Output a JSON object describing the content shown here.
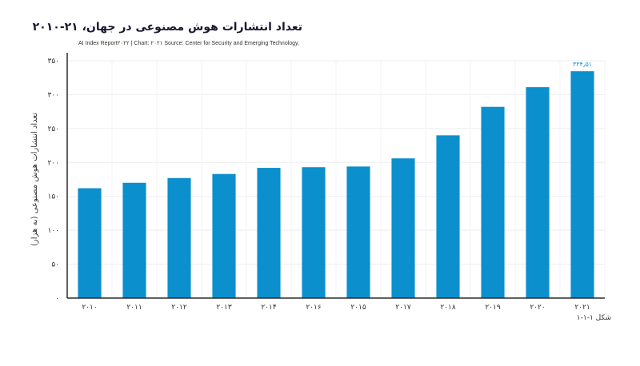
{
  "chart_data": {
    "type": "bar",
    "title": "تعداد انتشارات هوش مصنوعی در جهان، ۲۱-۲۰۱۰",
    "subtitle": "AI Index Report۲۰۲۲ | Chart: ۲۰۲۱ Source: Center for Security and Emerging Technology,",
    "caption": "شکل ۱-۱-۱",
    "ylabel": "تعداد انتشارات هوش مصنوعی (به هزار)",
    "xlabel": "",
    "ylim": [
      0,
      350
    ],
    "yticks": [
      0,
      50,
      100,
      150,
      200,
      250,
      300,
      350
    ],
    "ytick_labels": [
      "۰",
      "۵۰",
      "۱۰۰",
      "۱۵۰",
      "۲۰۰",
      "۲۵۰",
      "۳۰۰",
      "۳۵۰"
    ],
    "categories": [
      "۲۰۱۰",
      "۲۰۱۱",
      "۲۰۱۲",
      "۲۰۱۳",
      "۲۰۱۴",
      "۲۰۱۶",
      "۲۰۱۵",
      "۲۰۱۷",
      "۲۰۱۸",
      "۲۰۱۹",
      "۲۰۲۰",
      "۲۰۲۱"
    ],
    "values": [
      162,
      170,
      177,
      183,
      192,
      193,
      194,
      206,
      240,
      282,
      311,
      334.5
    ],
    "data_labels": [
      "",
      "",
      "",
      "",
      "",
      "",
      "",
      "",
      "",
      "",
      "",
      "۳۳۴٫۵۱"
    ],
    "bar_color": "#0b8fcd",
    "grid": true,
    "legend": "none"
  }
}
